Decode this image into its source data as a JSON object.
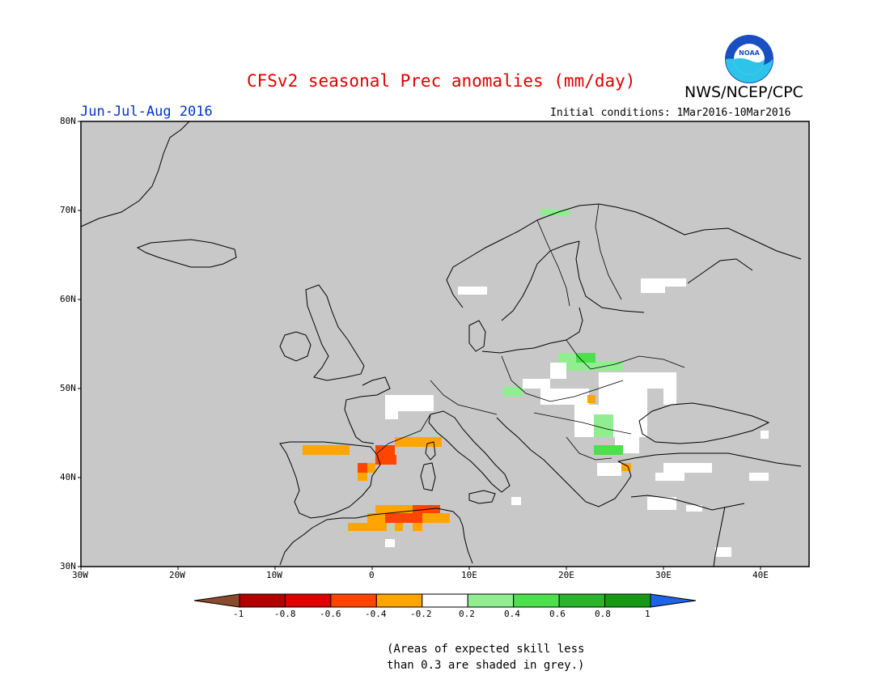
{
  "header": {
    "title": "CFSv2 seasonal Prec anomalies (mm/day)",
    "agency": "NWS/NCEP/CPC",
    "logo_text": "NOAA",
    "period": "Jun-Jul-Aug 2016",
    "initial_conditions": "Initial conditions: 1Mar2016-10Mar2016"
  },
  "map": {
    "ocean_color": "#c8c8c8",
    "lon_range": [
      -30,
      45
    ],
    "lat_range": [
      30,
      80
    ],
    "lat_labels": [
      "80N",
      "70N",
      "60N",
      "50N",
      "40N",
      "30N"
    ],
    "lon_labels": [
      "30W",
      "20W",
      "10W",
      "0",
      "10E",
      "20E",
      "30E",
      "40E"
    ]
  },
  "legend": {
    "tick_labels": [
      "-1",
      "-0.8",
      "-0.6",
      "-0.4",
      "-0.2",
      "0.2",
      "0.4",
      "0.6",
      "0.8",
      "1"
    ],
    "colors": [
      "#8b4a2b",
      "#b30000",
      "#dd0000",
      "#ff4500",
      "#ffa500",
      "#ffffff",
      "#90ee90",
      "#4ce04c",
      "#2ab42a",
      "#169a16",
      "#1e64e6"
    ]
  },
  "note": {
    "line1": "(Areas of expected skill less",
    "line2": "than 0.3 are shaded in grey.)"
  }
}
